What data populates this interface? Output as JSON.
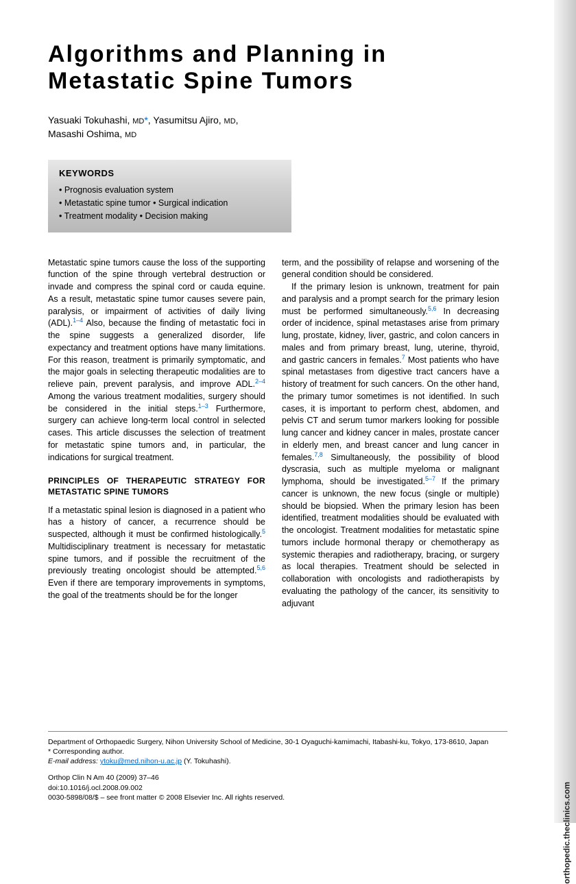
{
  "sidebar": {
    "url_label": "orthopedic.theclinics.com",
    "gradient_from": "#f5f5f5",
    "gradient_to": "#c8c8c8"
  },
  "title": "Algorithms and Planning in Metastatic Spine Tumors",
  "authors_line1": "Yasuaki Tokuhashi,",
  "authors_deg1": "MD",
  "authors_asterisk": "*",
  "authors_line1b": ", Yasumitsu Ajiro,",
  "authors_deg2": "MD",
  "authors_line2": "Masashi Oshima,",
  "authors_deg3": "MD",
  "keywords": {
    "heading": "KEYWORDS",
    "items": "• Prognosis evaluation system\n• Metastatic spine tumor • Surgical indication\n• Treatment modality  • Decision making",
    "bg_from": "#e8e8e8",
    "bg_to": "#b8b8b8"
  },
  "body": {
    "col1_p1a": "Metastatic spine tumors cause the loss of the supporting function of the spine through vertebral destruction or invade and compress the spinal cord or cauda equine. As a result, metastatic spine tumor causes severe pain, paralysis, or impairment of activities of daily living (ADL).",
    "ref1": "1–4",
    "col1_p1b": " Also, because the finding of metastatic foci in the spine suggests a generalized disorder, life expectancy and treatment options have many limitations. For this reason, treatment is primarily symptomatic, and the major goals in selecting therapeutic modalities are to relieve pain, prevent paralysis, and improve ADL.",
    "ref2": "2–4",
    "col1_p1c": " Among the various treatment modalities, surgery should be considered in the initial steps.",
    "ref3": "1–3",
    "col1_p1d": " Furthermore, surgery can achieve long-term local control in selected cases. This article discusses the selection of treatment for metastatic spine tumors and, in particular, the indications for surgical treatment.",
    "section_heading": "PRINCIPLES OF THERAPEUTIC STRATEGY FOR METASTATIC SPINE TUMORS",
    "col1_p2a": "If a metastatic spinal lesion is diagnosed in a patient who has a history of cancer, a recurrence should be suspected, although it must be confirmed histologically.",
    "ref4": "5",
    "col1_p2b": " Multidisciplinary treatment is necessary for metastatic spine tumors, and if possible the recruitment of the previously treating oncologist should be attempted.",
    "ref5": "5,6",
    "col1_p2c": " Even if there are temporary improvements in symptoms, the goal of the treatments should be for the longer",
    "col2_p1": "term, and the possibility of relapse and worsening of the general condition should be considered.",
    "col2_p2a": "If the primary lesion is unknown, treatment for pain and paralysis and a prompt search for the primary lesion must be performed simultaneously.",
    "ref6": "5,6",
    "col2_p2b": " In decreasing order of incidence, spinal metastases arise from primary lung, prostate, kidney, liver, gastric, and colon cancers in males and from primary breast, lung, uterine, thyroid, and gastric cancers in females.",
    "ref7": "7",
    "col2_p2c": " Most patients who have spinal metastases from digestive tract cancers have a history of treatment for such cancers. On the other hand, the primary tumor sometimes is not identified. In such cases, it is important to perform chest, abdomen, and pelvis CT and serum tumor markers looking for possible lung cancer and kidney cancer in males, prostate cancer in elderly men, and breast cancer and lung cancer in females.",
    "ref8": "7,8",
    "col2_p2d": " Simultaneously, the possibility of blood dyscrasia, such as multiple myeloma or malignant lymphoma, should be investigated.",
    "ref9": "5–7",
    "col2_p2e": " If the primary cancer is unknown, the new focus (single or multiple) should be biopsied. When the primary lesion has been identified, treatment modalities should be evaluated with the oncologist. Treatment modalities for metastatic spine tumors include hormonal therapy or chemotherapy as systemic therapies and radiotherapy, bracing, or surgery as local therapies. Treatment should be selected in collaboration with oncologists and radiotherapists by evaluating the pathology of the cancer, its sensitivity to adjuvant"
  },
  "footer": {
    "affiliation": "Department of Orthopaedic Surgery, Nihon University School of Medicine, 30-1 Oyaguchi-kamimachi, Itabashi-ku, Tokyo, 173-8610, Japan",
    "corresponding": "* Corresponding author.",
    "email_label": "E-mail address:",
    "email": "ytoku@med.nihon-u.ac.jp",
    "email_suffix": " (Y. Tokuhashi).",
    "citation": "Orthop Clin N Am 40 (2009) 37–46",
    "doi": "doi:10.1016/j.ocl.2008.09.002",
    "copyright": "0030-5898/08/$ – see front matter © 2008 Elsevier Inc. All rights reserved."
  },
  "colors": {
    "link": "#0066cc",
    "text": "#000000",
    "rule": "#888888"
  }
}
